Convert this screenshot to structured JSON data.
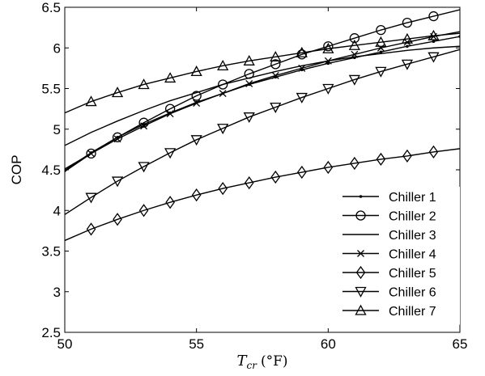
{
  "chart_data": {
    "type": "line",
    "xlabel": {
      "var": "T",
      "sub": "cr",
      "unit": "(°F)"
    },
    "ylabel": "COP",
    "xlim": [
      50,
      65
    ],
    "ylim": [
      2.5,
      6.5
    ],
    "xticks": [
      50,
      55,
      60,
      65
    ],
    "yticks": [
      "2.5",
      "3",
      "3.5",
      "4",
      "4.5",
      "5",
      "5.5",
      "6",
      "6.5"
    ],
    "grid": false,
    "legend_position": "bottom-right",
    "x": [
      50,
      51,
      52,
      53,
      54,
      55,
      56,
      57,
      58,
      59,
      60,
      61,
      62,
      63,
      64,
      65
    ],
    "series": [
      {
        "name": "Chiller 1",
        "marker": "dot",
        "values": [
          4.49,
          4.71,
          4.9,
          5.06,
          5.2,
          5.33,
          5.44,
          5.55,
          5.64,
          5.73,
          5.81,
          5.88,
          5.95,
          6.02,
          6.08,
          6.14
        ]
      },
      {
        "name": "Chiller 2",
        "marker": "circle",
        "values": [
          4.51,
          4.7,
          4.9,
          5.08,
          5.25,
          5.41,
          5.55,
          5.68,
          5.8,
          5.92,
          6.02,
          6.12,
          6.22,
          6.31,
          6.39,
          6.47
        ]
      },
      {
        "name": "Chiller 3",
        "marker": "none",
        "values": [
          4.8,
          4.96,
          5.1,
          5.23,
          5.35,
          5.45,
          5.55,
          5.63,
          5.71,
          5.78,
          5.84,
          5.89,
          5.93,
          5.97,
          6.0,
          6.02
        ]
      },
      {
        "name": "Chiller 4",
        "marker": "x",
        "values": [
          4.48,
          4.7,
          4.88,
          5.04,
          5.19,
          5.32,
          5.44,
          5.56,
          5.66,
          5.75,
          5.84,
          5.92,
          6.0,
          6.07,
          6.14,
          6.2
        ]
      },
      {
        "name": "Chiller 5",
        "marker": "diamond",
        "values": [
          3.63,
          3.77,
          3.89,
          4.0,
          4.1,
          4.19,
          4.27,
          4.34,
          4.41,
          4.47,
          4.53,
          4.58,
          4.63,
          4.67,
          4.72,
          4.76
        ]
      },
      {
        "name": "Chiller 6",
        "marker": "triangle-down",
        "values": [
          3.95,
          4.16,
          4.36,
          4.54,
          4.71,
          4.87,
          5.01,
          5.15,
          5.27,
          5.39,
          5.5,
          5.61,
          5.71,
          5.8,
          5.89,
          5.98
        ]
      },
      {
        "name": "Chiller 7",
        "marker": "triangle-up",
        "values": [
          5.2,
          5.34,
          5.45,
          5.55,
          5.63,
          5.71,
          5.78,
          5.84,
          5.89,
          5.94,
          5.99,
          6.03,
          6.07,
          6.11,
          6.15,
          6.18
        ]
      }
    ]
  }
}
